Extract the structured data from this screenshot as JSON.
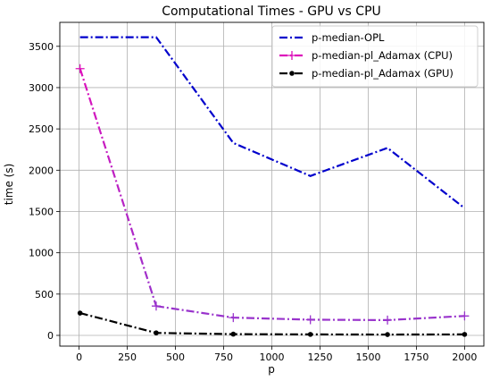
{
  "chart_data": {
    "type": "line",
    "title": "Computational Times - GPU vs CPU",
    "xlabel": "p",
    "ylabel": "time (s)",
    "xlim": [
      -100,
      2100
    ],
    "ylim": [
      -130,
      3790
    ],
    "xticks": [
      0,
      250,
      500,
      750,
      1000,
      1250,
      1500,
      1750,
      2000
    ],
    "yticks": [
      0,
      500,
      1000,
      1500,
      2000,
      2500,
      3000,
      3500
    ],
    "grid": true,
    "legend_position": "top-right",
    "series": [
      {
        "name": "p-median-OPL",
        "color": "#0000cc",
        "marker": "none",
        "x": [
          5,
          400,
          800,
          1200,
          1600,
          2000
        ],
        "y": [
          3610,
          3610,
          2330,
          1930,
          2270,
          1540
        ]
      },
      {
        "name": "p-median-pl_Adamax (CPU)",
        "color": "#dd11bb",
        "color_end": "#9933cc",
        "marker": "plus",
        "x": [
          5,
          400,
          800,
          1200,
          1600,
          2000
        ],
        "y": [
          3230,
          355,
          215,
          190,
          185,
          235
        ]
      },
      {
        "name": "p-median-pl_Adamax (GPU)",
        "color": "#000000",
        "marker": "dot",
        "x": [
          5,
          400,
          800,
          1200,
          1600,
          2000
        ],
        "y": [
          270,
          30,
          15,
          12,
          10,
          12
        ]
      }
    ]
  }
}
